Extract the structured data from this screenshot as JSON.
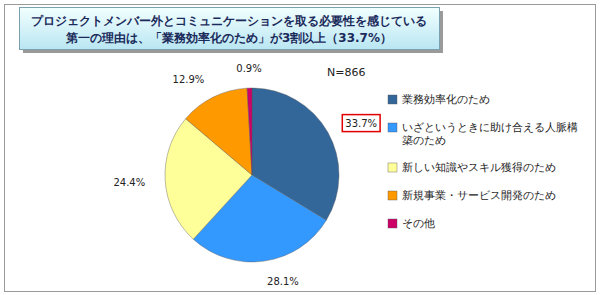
{
  "chart_data": {
    "type": "pie",
    "title": [
      "プロジェクトメンバー外とコミュニケーションを取る必要性を感じている",
      "第一の理由は、「業務効率化のため」が3割以上（33.7%）"
    ],
    "annotation": "N=866",
    "categories": [
      "業務効率化のため",
      "いざというときに助け合える人脈構築のため",
      "新しい知識やスキル獲得のため",
      "新規事業・サービス開発のため",
      "その他"
    ],
    "values": [
      33.7,
      28.1,
      24.4,
      12.9,
      0.9
    ],
    "value_labels": [
      "33.7%",
      "28.1%",
      "24.4%",
      "12.9%",
      "0.9%"
    ],
    "colors": [
      "#336699",
      "#3399ff",
      "#ffff99",
      "#ff9900",
      "#cc0066"
    ],
    "data_labels": true,
    "legend": "right"
  }
}
